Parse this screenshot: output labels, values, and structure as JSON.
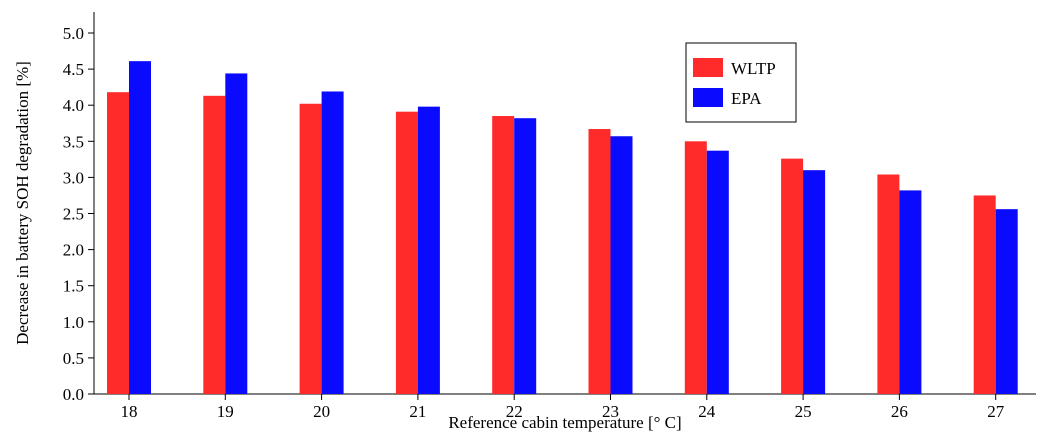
{
  "chart_data": {
    "type": "bar",
    "title": "",
    "xlabel": "Reference cabin temperature [° C]",
    "ylabel": "Decrease in battery SOH degradation [%]",
    "ylim": [
      0,
      5.0
    ],
    "yticks": [
      "0.0",
      "0.5",
      "1.0",
      "1.5",
      "2.0",
      "2.5",
      "3.0",
      "3.5",
      "4.0",
      "4.5",
      "5.0"
    ],
    "categories": [
      "18",
      "19",
      "20",
      "21",
      "22",
      "23",
      "24",
      "25",
      "26",
      "27"
    ],
    "series": [
      {
        "name": "WLTP",
        "color": "#ff2a2a",
        "values": [
          4.18,
          4.13,
          4.02,
          3.91,
          3.85,
          3.67,
          3.5,
          3.26,
          3.04,
          2.75
        ]
      },
      {
        "name": "EPA",
        "color": "#0a0aff",
        "values": [
          4.61,
          4.44,
          4.19,
          3.98,
          3.82,
          3.57,
          3.37,
          3.1,
          2.82,
          2.56
        ]
      }
    ],
    "grid": false,
    "legend_position": "top-right"
  }
}
